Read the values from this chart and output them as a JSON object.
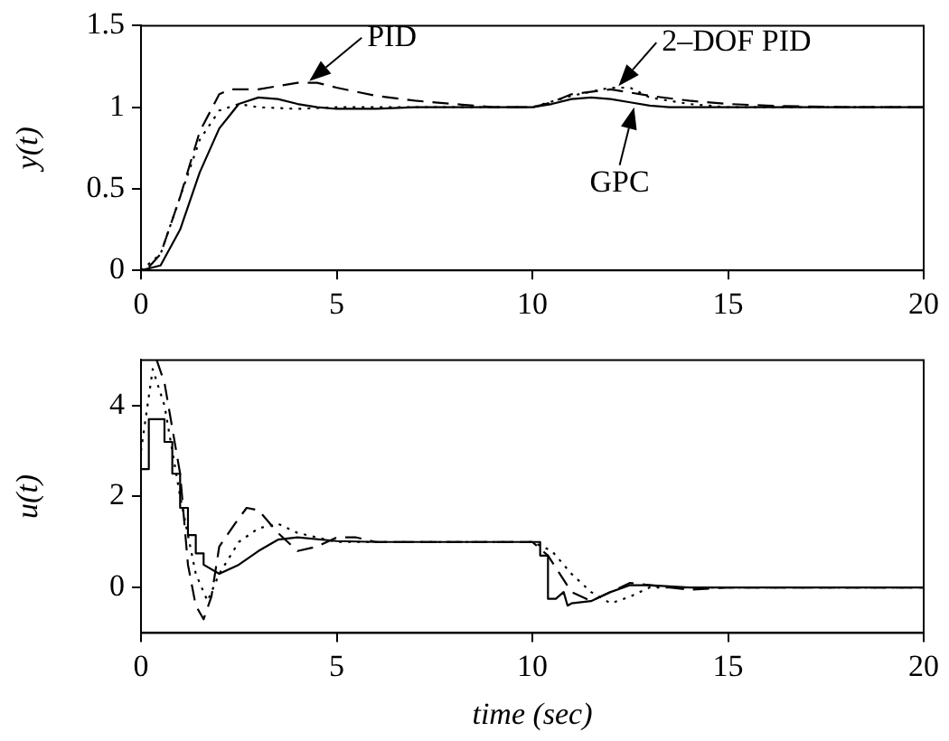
{
  "chart_data": [
    {
      "type": "line",
      "ylabel": "y(t)",
      "xlim": [
        0,
        20
      ],
      "xticks": [
        0,
        5,
        10,
        15,
        20
      ],
      "ylim": [
        0,
        1.5
      ],
      "yticks": [
        0,
        0.5,
        1,
        1.5
      ],
      "marker": "none",
      "annotations": [
        {
          "text": "PID",
          "x": 4.3,
          "y": 1.16
        },
        {
          "text": "GPC",
          "x": 12.6,
          "y": 1.0
        },
        {
          "text": "2–DOF PID",
          "x": 12.2,
          "y": 1.13
        }
      ],
      "series": [
        {
          "color": "#000000",
          "line_style": "solid",
          "x": [
            0,
            0.5,
            1,
            1.5,
            2,
            2.5,
            3,
            3.5,
            4,
            4.5,
            5,
            6,
            7,
            10,
            10.5,
            11,
            11.5,
            12,
            12.5,
            13,
            13.5,
            14,
            20
          ],
          "values": [
            0,
            0.03,
            0.25,
            0.6,
            0.87,
            1.02,
            1.06,
            1.05,
            1.02,
            1.0,
            0.99,
            0.99,
            1.0,
            1.0,
            1.02,
            1.05,
            1.06,
            1.05,
            1.03,
            1.01,
            1.0,
            1.0,
            1.0
          ]
        },
        {
          "color": "#000000",
          "line_style": "dashed",
          "x": [
            0.2,
            0.5,
            1,
            1.5,
            2,
            2.3,
            3,
            4,
            4.5,
            5,
            6,
            7,
            8,
            9,
            10,
            10.5,
            11,
            12,
            13,
            14,
            15,
            16,
            18,
            20
          ],
          "values": [
            0.02,
            0.1,
            0.45,
            0.85,
            1.08,
            1.11,
            1.11,
            1.15,
            1.15,
            1.12,
            1.07,
            1.04,
            1.02,
            1.0,
            1.0,
            1.03,
            1.08,
            1.11,
            1.07,
            1.04,
            1.02,
            1.01,
            1.0,
            1.0
          ]
        },
        {
          "color": "#000000",
          "line_style": "dotted",
          "x": [
            0,
            0.5,
            1,
            1.5,
            2,
            2.5,
            3,
            4,
            5,
            10,
            11,
            12,
            12.5,
            13,
            14,
            15,
            19.8
          ],
          "values": [
            0,
            0.1,
            0.45,
            0.8,
            0.98,
            1.02,
            1.0,
            0.99,
            1.0,
            1.0,
            1.07,
            1.12,
            1.12,
            1.06,
            1.02,
            1.0,
            1.0
          ]
        }
      ]
    },
    {
      "type": "line",
      "xlabel": "time (sec)",
      "ylabel": "u(t)",
      "xlim": [
        0,
        20
      ],
      "xticks": [
        0,
        5,
        10,
        15,
        20
      ],
      "ylim": [
        -1,
        5
      ],
      "yticks": [
        0,
        2,
        4
      ],
      "marker": "none",
      "series": [
        {
          "color": "#000000",
          "line_style": "solid",
          "x": [
            0,
            0.2,
            0.2,
            0.6,
            0.6,
            0.8,
            0.8,
            1,
            1,
            1.2,
            1.2,
            1.4,
            1.4,
            1.6,
            1.6,
            2,
            2.5,
            3,
            3.5,
            4,
            5,
            6,
            10,
            10.2,
            10.2,
            10.4,
            10.4,
            10.6,
            10.8,
            10.9,
            11,
            11.5,
            12,
            12.5,
            13,
            14,
            20
          ],
          "values": [
            2.6,
            2.6,
            3.7,
            3.7,
            3.2,
            3.2,
            2.5,
            2.5,
            1.75,
            1.75,
            1.15,
            1.15,
            0.75,
            0.75,
            0.5,
            0.3,
            0.5,
            0.8,
            1.05,
            1.1,
            1.02,
            1.0,
            1.0,
            1.0,
            0.7,
            0.7,
            -0.25,
            -0.25,
            -0.1,
            -0.4,
            -0.35,
            -0.3,
            -0.1,
            0.05,
            0.05,
            0,
            0
          ]
        },
        {
          "color": "#000000",
          "line_style": "dashed",
          "x": [
            0.4,
            0.6,
            1,
            1.2,
            1.4,
            1.6,
            1.8,
            2,
            2.4,
            2.7,
            3,
            3.5,
            4,
            4.5,
            5,
            5.5,
            6,
            10,
            10.4,
            10.7,
            11,
            11.5,
            12,
            12.5,
            13,
            14,
            15,
            20
          ],
          "values": [
            5,
            4.5,
            2.5,
            0.5,
            -0.4,
            -0.7,
            -0.2,
            0.9,
            1.4,
            1.75,
            1.7,
            1.2,
            0.8,
            0.9,
            1.1,
            1.1,
            1.0,
            1.0,
            0.7,
            0.3,
            -0.1,
            -0.3,
            -0.1,
            0.1,
            0.05,
            -0.05,
            0,
            0
          ]
        },
        {
          "color": "#000000",
          "line_style": "dotted",
          "x": [
            0,
            0.3,
            0.6,
            1,
            1.4,
            1.7,
            2,
            2.5,
            3,
            3.5,
            4,
            5,
            10,
            10.5,
            11,
            11.5,
            12,
            12.5,
            13,
            14,
            20
          ],
          "values": [
            3,
            4.8,
            4.0,
            2.0,
            0.3,
            -0.3,
            0.3,
            1.0,
            1.3,
            1.4,
            1.2,
            1.0,
            1.0,
            0.8,
            0.3,
            -0.1,
            -0.35,
            -0.2,
            0,
            0,
            0
          ]
        }
      ]
    }
  ]
}
